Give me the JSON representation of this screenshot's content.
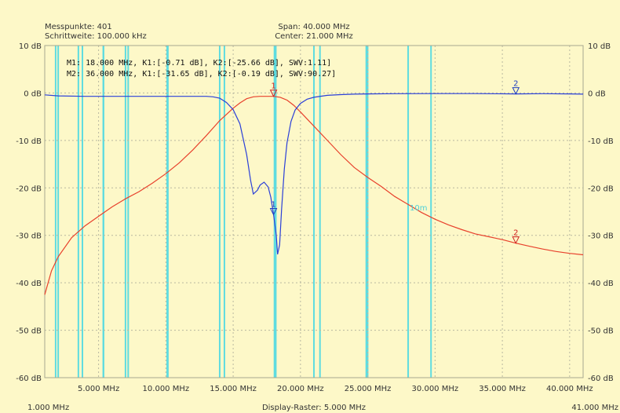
{
  "header": {
    "points_label": "Messpunkte:  401",
    "step_label": "Schrittweite: 100.000 kHz",
    "span_label": "Span: 40.000 MHz",
    "center_label": "Center: 21.000 MHz"
  },
  "marker_readout": {
    "line1": "M1: 18.000 MHz, K1:[-0.71 dB], K2:[-25.66 dB], SWV:1.11]",
    "line2": "M2: 36.000 MHz, K1:[-31.65 dB], K2:[-0.19 dB], SWV:90.27]"
  },
  "footer": {
    "start_label": "1.000 MHz",
    "stop_label": "41.000 MHz",
    "raster_label": "Display-Raster: 5.000 MHz"
  },
  "band_annotation": "10m",
  "colors": {
    "background": "#fdf8c8",
    "grid": "#b8b8a0",
    "ch1": "#e8412c",
    "ch2": "#2a3fd8",
    "band_lines": "#5fdce0",
    "band_label": "#4fd0d8",
    "marker1": "#d02020",
    "marker2": "#2040c0"
  },
  "chart_data": {
    "type": "line",
    "xlim": [
      1.0,
      41.0
    ],
    "ylim": [
      -60,
      10
    ],
    "x_ticks": [
      5,
      10,
      15,
      20,
      25,
      30,
      35,
      40
    ],
    "x_tick_labels": [
      "5.000 MHz",
      "10.000 MHz",
      "15.000 MHz",
      "20.000 MHz",
      "25.000 MHz",
      "30.000 MHz",
      "35.000 MHz",
      "40.000 MHz"
    ],
    "y_ticks": [
      10,
      0,
      -10,
      -20,
      -30,
      -40,
      -50,
      -60
    ],
    "y_tick_labels": [
      "10 dB",
      "0 dB",
      "-10 dB",
      "-20 dB",
      "-30 dB",
      "-40 dB",
      "-50 dB",
      "-60 dB"
    ],
    "grid": true,
    "band_lines_mhz": [
      1.81,
      2.0,
      3.5,
      3.8,
      5.35,
      5.37,
      7.0,
      7.2,
      10.1,
      10.15,
      14.0,
      14.35,
      18.068,
      18.168,
      21.0,
      21.45,
      24.89,
      24.99,
      28.0,
      29.7
    ],
    "series": [
      {
        "x": [
          1.0,
          1.5,
          2.0,
          3.0,
          4.0,
          5.0,
          6.0,
          7.0,
          8.0,
          9.0,
          10.0,
          11.0,
          12.0,
          13.0,
          14.0,
          15.0,
          15.5,
          16.0,
          16.5,
          17.0,
          17.5,
          18.0,
          18.5,
          19.0,
          19.5,
          20.0,
          21.0,
          22.0,
          23.0,
          24.0,
          25.0,
          26.0,
          27.0,
          28.0,
          29.0,
          30.0,
          31.0,
          32.0,
          33.0,
          34.0,
          35.0,
          36.0,
          37.0,
          38.0,
          39.0,
          40.0,
          41.0
        ],
        "values": [
          -42.5,
          -37.5,
          -34.5,
          -30.5,
          -28.0,
          -26.0,
          -24.0,
          -22.3,
          -20.8,
          -19.0,
          -17.0,
          -14.7,
          -12.0,
          -9.0,
          -5.8,
          -3.2,
          -2.1,
          -1.2,
          -0.8,
          -0.7,
          -0.7,
          -0.7,
          -0.9,
          -1.5,
          -2.6,
          -4.0,
          -7.0,
          -10.0,
          -13.0,
          -15.7,
          -17.8,
          -19.7,
          -21.8,
          -23.5,
          -25.2,
          -26.6,
          -27.8,
          -28.8,
          -29.7,
          -30.3,
          -30.9,
          -31.65,
          -32.3,
          -32.9,
          -33.4,
          -33.8,
          -34.1
        ]
      },
      {
        "x": [
          1.0,
          2.0,
          4.0,
          6.0,
          8.0,
          10.0,
          12.0,
          13.0,
          13.5,
          14.0,
          14.5,
          15.0,
          15.5,
          16.0,
          16.3,
          16.5,
          16.8,
          17.0,
          17.3,
          17.6,
          17.8,
          18.0,
          18.2,
          18.3,
          18.45,
          18.6,
          18.8,
          19.0,
          19.3,
          19.6,
          20.0,
          20.5,
          21.0,
          22.0,
          23.0,
          24.0,
          25.0,
          27.0,
          30.0,
          33.0,
          36.0,
          38.0,
          40.0,
          41.0
        ],
        "values": [
          -0.4,
          -0.6,
          -0.7,
          -0.7,
          -0.7,
          -0.7,
          -0.7,
          -0.7,
          -0.8,
          -1.1,
          -2.0,
          -3.5,
          -6.5,
          -13.0,
          -18.5,
          -21.3,
          -20.5,
          -19.4,
          -18.8,
          -19.8,
          -22.0,
          -25.66,
          -30.0,
          -34.0,
          -32.0,
          -24.5,
          -16.0,
          -10.5,
          -6.0,
          -3.6,
          -2.2,
          -1.3,
          -0.9,
          -0.5,
          -0.35,
          -0.25,
          -0.2,
          -0.15,
          -0.12,
          -0.12,
          -0.19,
          -0.15,
          -0.2,
          -0.25
        ]
      }
    ],
    "markers": [
      {
        "label": "1",
        "x": 18.0,
        "series": 0,
        "value": -0.71
      },
      {
        "label": "1",
        "x": 18.0,
        "series": 1,
        "value": -25.66
      },
      {
        "label": "2",
        "x": 36.0,
        "series": 0,
        "value": -31.65
      },
      {
        "label": "2",
        "x": 36.0,
        "series": 1,
        "value": -0.19
      }
    ]
  }
}
